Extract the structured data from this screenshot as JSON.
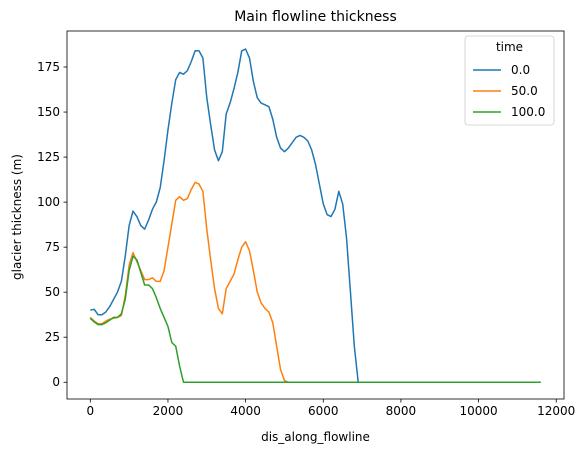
{
  "chart_data": {
    "type": "line",
    "title": "Main flowline thickness",
    "xlabel": "dis_along_flowline",
    "ylabel": "glacier thickness (m)",
    "xlim": [
      -600,
      12200
    ],
    "ylim": [
      -9.3,
      195
    ],
    "xticks": [
      0,
      2000,
      4000,
      6000,
      8000,
      10000,
      12000
    ],
    "xtick_labels": [
      "0",
      "2000",
      "4000",
      "6000",
      "8000",
      "10000",
      "12000"
    ],
    "yticks": [
      0,
      25,
      50,
      75,
      100,
      125,
      150,
      175
    ],
    "ytick_labels": [
      "0",
      "25",
      "50",
      "75",
      "100",
      "125",
      "150",
      "175"
    ],
    "legend": {
      "title": "time",
      "placement": "top-right"
    },
    "grid": false,
    "series": [
      {
        "name": "0.0",
        "color": "#1f77b4",
        "points": [
          [
            0,
            40
          ],
          [
            100,
            40.5
          ],
          [
            200,
            37.5
          ],
          [
            300,
            37.5
          ],
          [
            400,
            39
          ],
          [
            500,
            42
          ],
          [
            600,
            46
          ],
          [
            700,
            50
          ],
          [
            800,
            56
          ],
          [
            900,
            70
          ],
          [
            1000,
            87
          ],
          [
            1100,
            95
          ],
          [
            1200,
            92
          ],
          [
            1300,
            87
          ],
          [
            1400,
            85
          ],
          [
            1500,
            90
          ],
          [
            1600,
            96
          ],
          [
            1700,
            100
          ],
          [
            1800,
            108
          ],
          [
            1900,
            123
          ],
          [
            2000,
            140
          ],
          [
            2100,
            155
          ],
          [
            2200,
            168
          ],
          [
            2300,
            172
          ],
          [
            2400,
            171
          ],
          [
            2500,
            173
          ],
          [
            2600,
            178
          ],
          [
            2700,
            184
          ],
          [
            2800,
            184
          ],
          [
            2900,
            180
          ],
          [
            3000,
            158
          ],
          [
            3100,
            143
          ],
          [
            3200,
            129
          ],
          [
            3300,
            123
          ],
          [
            3400,
            128
          ],
          [
            3500,
            149
          ],
          [
            3600,
            155
          ],
          [
            3700,
            163
          ],
          [
            3800,
            172
          ],
          [
            3900,
            184
          ],
          [
            4000,
            185
          ],
          [
            4100,
            180
          ],
          [
            4200,
            167
          ],
          [
            4300,
            158
          ],
          [
            4400,
            155
          ],
          [
            4500,
            154
          ],
          [
            4600,
            153
          ],
          [
            4700,
            146
          ],
          [
            4800,
            136
          ],
          [
            4900,
            130
          ],
          [
            5000,
            128
          ],
          [
            5100,
            130
          ],
          [
            5200,
            133
          ],
          [
            5300,
            136
          ],
          [
            5400,
            137
          ],
          [
            5500,
            136
          ],
          [
            5600,
            134
          ],
          [
            5700,
            129
          ],
          [
            5800,
            121
          ],
          [
            5900,
            110
          ],
          [
            6000,
            99
          ],
          [
            6100,
            93
          ],
          [
            6200,
            92
          ],
          [
            6300,
            96
          ],
          [
            6400,
            106
          ],
          [
            6500,
            99
          ],
          [
            6600,
            80
          ],
          [
            6700,
            50
          ],
          [
            6800,
            20
          ],
          [
            6900,
            0
          ],
          [
            7000,
            0
          ],
          [
            8000,
            0
          ],
          [
            9000,
            0
          ],
          [
            10000,
            0
          ],
          [
            11000,
            0
          ],
          [
            11600,
            0
          ]
        ]
      },
      {
        "name": "50.0",
        "color": "#ff7f0e",
        "points": [
          [
            0,
            36
          ],
          [
            100,
            34
          ],
          [
            200,
            32.5
          ],
          [
            300,
            32.5
          ],
          [
            400,
            34
          ],
          [
            500,
            35
          ],
          [
            600,
            35.5
          ],
          [
            700,
            36
          ],
          [
            800,
            37
          ],
          [
            900,
            48
          ],
          [
            1000,
            65
          ],
          [
            1100,
            72
          ],
          [
            1200,
            67
          ],
          [
            1300,
            62
          ],
          [
            1400,
            57
          ],
          [
            1500,
            57
          ],
          [
            1600,
            58
          ],
          [
            1700,
            56
          ],
          [
            1800,
            56
          ],
          [
            1900,
            62
          ],
          [
            2000,
            75
          ],
          [
            2100,
            88
          ],
          [
            2200,
            101
          ],
          [
            2300,
            103
          ],
          [
            2400,
            101
          ],
          [
            2500,
            102
          ],
          [
            2600,
            107
          ],
          [
            2700,
            111
          ],
          [
            2800,
            110
          ],
          [
            2900,
            106
          ],
          [
            3000,
            85
          ],
          [
            3100,
            68
          ],
          [
            3200,
            52
          ],
          [
            3300,
            41
          ],
          [
            3400,
            38
          ],
          [
            3500,
            52
          ],
          [
            3600,
            56
          ],
          [
            3700,
            60
          ],
          [
            3800,
            68
          ],
          [
            3900,
            75
          ],
          [
            4000,
            78
          ],
          [
            4100,
            73
          ],
          [
            4200,
            62
          ],
          [
            4300,
            50
          ],
          [
            4400,
            44
          ],
          [
            4500,
            41
          ],
          [
            4600,
            39
          ],
          [
            4700,
            33
          ],
          [
            4800,
            20
          ],
          [
            4900,
            7
          ],
          [
            5000,
            1
          ],
          [
            5100,
            0
          ],
          [
            6000,
            0
          ],
          [
            7000,
            0
          ],
          [
            8000,
            0
          ],
          [
            9000,
            0
          ],
          [
            10000,
            0
          ],
          [
            11000,
            0
          ],
          [
            11600,
            0
          ]
        ]
      },
      {
        "name": "100.0",
        "color": "#2ca02c",
        "points": [
          [
            0,
            35.5
          ],
          [
            100,
            33.5
          ],
          [
            200,
            32
          ],
          [
            300,
            32
          ],
          [
            400,
            33
          ],
          [
            500,
            34.5
          ],
          [
            600,
            36
          ],
          [
            700,
            36
          ],
          [
            800,
            38
          ],
          [
            900,
            46
          ],
          [
            1000,
            62
          ],
          [
            1100,
            70
          ],
          [
            1200,
            68
          ],
          [
            1300,
            61
          ],
          [
            1400,
            54
          ],
          [
            1500,
            54
          ],
          [
            1600,
            52
          ],
          [
            1700,
            47
          ],
          [
            1800,
            41
          ],
          [
            1900,
            36
          ],
          [
            2000,
            31
          ],
          [
            2100,
            22
          ],
          [
            2200,
            20
          ],
          [
            2300,
            9
          ],
          [
            2400,
            0
          ],
          [
            3000,
            0
          ],
          [
            4000,
            0
          ],
          [
            5000,
            0
          ],
          [
            6000,
            0
          ],
          [
            7000,
            0
          ],
          [
            8000,
            0
          ],
          [
            9000,
            0
          ],
          [
            10000,
            0
          ],
          [
            11000,
            0
          ],
          [
            11600,
            0
          ]
        ]
      }
    ]
  }
}
